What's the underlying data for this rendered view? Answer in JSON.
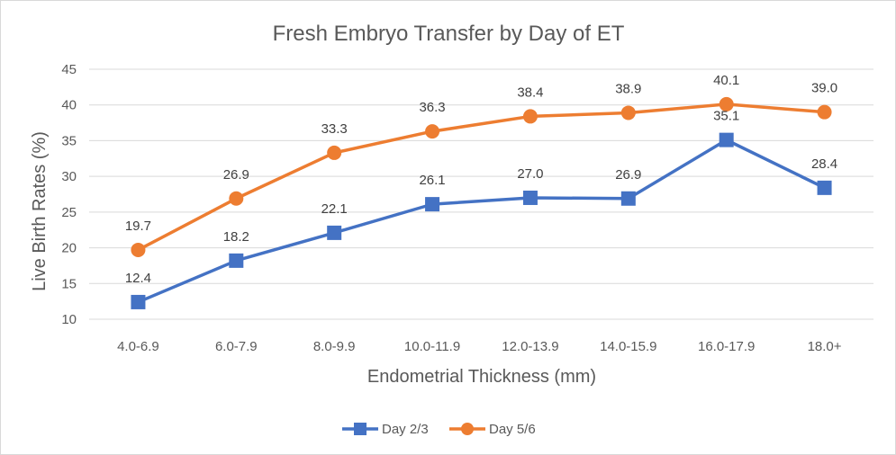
{
  "chart_data": {
    "type": "line",
    "title": "Fresh Embryo Transfer by Day of ET",
    "xlabel": "Endometrial Thickness (mm)",
    "ylabel": "Live Birth Rates (%)",
    "categories": [
      "4.0-6.9",
      "6.0-7.9",
      "8.0-9.9",
      "10.0-11.9",
      "12.0-13.9",
      "14.0-15.9",
      "16.0-17.9",
      "18.0+"
    ],
    "ylim": [
      10,
      45
    ],
    "yticks": [
      "10",
      "15",
      "20",
      "25",
      "30",
      "35",
      "40",
      "45"
    ],
    "grid": true,
    "legend_position": "bottom",
    "series": [
      {
        "name": "Day 2/3",
        "color": "#4472C4",
        "marker": "square",
        "values": [
          12.4,
          18.2,
          22.1,
          26.1,
          27.0,
          26.9,
          35.1,
          28.4
        ],
        "labels": [
          "12.4",
          "18.2",
          "22.1",
          "26.1",
          "27.0",
          "26.9",
          "35.1",
          "28.4"
        ]
      },
      {
        "name": "Day 5/6",
        "color": "#ED7D31",
        "marker": "circle",
        "values": [
          19.7,
          26.9,
          33.3,
          36.3,
          38.4,
          38.9,
          40.1,
          39.0
        ],
        "labels": [
          "19.7",
          "26.9",
          "33.3",
          "36.3",
          "38.4",
          "38.9",
          "40.1",
          "39.0"
        ]
      }
    ]
  }
}
